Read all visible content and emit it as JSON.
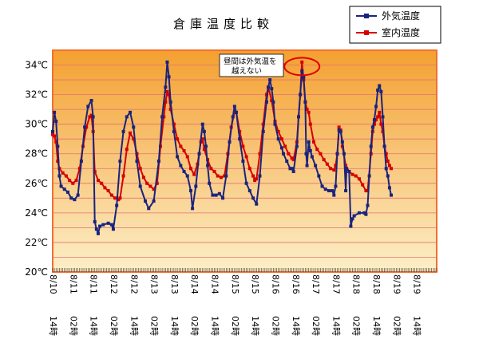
{
  "chart_data": {
    "type": "line",
    "title": "倉庫温度比較",
    "ylim": [
      20,
      35
    ],
    "yticks": [
      20,
      22,
      24,
      26,
      28,
      30,
      32,
      34
    ],
    "ytick_labels": [
      "20℃",
      "22℃",
      "24℃",
      "26℃",
      "28℃",
      "30℃",
      "32℃",
      "34℃"
    ],
    "xlim": [
      0,
      228
    ],
    "x_ticks": [
      {
        "h": 0,
        "date": "8/10",
        "time": "14時"
      },
      {
        "h": 12,
        "date": "8/11",
        "time": "02時"
      },
      {
        "h": 24,
        "date": "8/11",
        "time": "14時"
      },
      {
        "h": 36,
        "date": "8/12",
        "time": "02時"
      },
      {
        "h": 48,
        "date": "8/12",
        "time": "14時"
      },
      {
        "h": 60,
        "date": "8/13",
        "time": "02時"
      },
      {
        "h": 72,
        "date": "8/13",
        "time": "14時"
      },
      {
        "h": 84,
        "date": "8/14",
        "time": "02時"
      },
      {
        "h": 96,
        "date": "8/14",
        "time": "14時"
      },
      {
        "h": 108,
        "date": "8/15",
        "time": "02時"
      },
      {
        "h": 120,
        "date": "8/15",
        "time": "14時"
      },
      {
        "h": 132,
        "date": "8/16",
        "time": "02時"
      },
      {
        "h": 144,
        "date": "8/16",
        "time": "14時"
      },
      {
        "h": 156,
        "date": "8/17",
        "time": "02時"
      },
      {
        "h": 168,
        "date": "8/17",
        "time": "14時"
      },
      {
        "h": 180,
        "date": "8/18",
        "time": "02時"
      },
      {
        "h": 192,
        "date": "8/18",
        "time": "14時"
      },
      {
        "h": 204,
        "date": "8/19",
        "time": "02時"
      },
      {
        "h": 216,
        "date": "8/19",
        "time": "14時"
      }
    ],
    "grid": true,
    "legend_position": "top-right",
    "series": [
      {
        "name": "外気温度",
        "color": "#1a237e",
        "points": [
          [
            0,
            29.5
          ],
          [
            1,
            30.8
          ],
          [
            2,
            30.2
          ],
          [
            3,
            28.5
          ],
          [
            4,
            26.5
          ],
          [
            5,
            25.8
          ],
          [
            7,
            25.6
          ],
          [
            9,
            25.4
          ],
          [
            11,
            25.0
          ],
          [
            13,
            24.9
          ],
          [
            15,
            25.2
          ],
          [
            17,
            27.5
          ],
          [
            19,
            29.8
          ],
          [
            21,
            31.2
          ],
          [
            23,
            31.6
          ],
          [
            24,
            30.5
          ],
          [
            25,
            23.4
          ],
          [
            26,
            22.9
          ],
          [
            27,
            22.6
          ],
          [
            28,
            23.1
          ],
          [
            30,
            23.2
          ],
          [
            33,
            23.3
          ],
          [
            35,
            23.2
          ],
          [
            36,
            22.9
          ],
          [
            38,
            24.5
          ],
          [
            40,
            27.5
          ],
          [
            42,
            29.5
          ],
          [
            44,
            30.5
          ],
          [
            46,
            30.8
          ],
          [
            48,
            29.8
          ],
          [
            50,
            27.5
          ],
          [
            52,
            25.8
          ],
          [
            55,
            24.8
          ],
          [
            57,
            24.3
          ],
          [
            60,
            24.8
          ],
          [
            63,
            27.5
          ],
          [
            65,
            30.5
          ],
          [
            67,
            32.5
          ],
          [
            68,
            34.2
          ],
          [
            69,
            33.2
          ],
          [
            70,
            31.5
          ],
          [
            72,
            29.5
          ],
          [
            74,
            27.8
          ],
          [
            76,
            27.2
          ],
          [
            78,
            26.8
          ],
          [
            80,
            26.5
          ],
          [
            82,
            25.5
          ],
          [
            83,
            24.3
          ],
          [
            85,
            25.8
          ],
          [
            87,
            28.0
          ],
          [
            89,
            30.0
          ],
          [
            90,
            29.5
          ],
          [
            91,
            28.5
          ],
          [
            92,
            27.2
          ],
          [
            93,
            26.0
          ],
          [
            95,
            25.2
          ],
          [
            97,
            25.2
          ],
          [
            99,
            25.3
          ],
          [
            101,
            25.0
          ],
          [
            103,
            26.5
          ],
          [
            105,
            28.8
          ],
          [
            107,
            30.5
          ],
          [
            108,
            31.2
          ],
          [
            109,
            30.8
          ],
          [
            111,
            29.0
          ],
          [
            113,
            27.5
          ],
          [
            115,
            26.0
          ],
          [
            117,
            25.5
          ],
          [
            119,
            25.0
          ],
          [
            121,
            24.6
          ],
          [
            123,
            26.5
          ],
          [
            125,
            29.5
          ],
          [
            127,
            31.5
          ],
          [
            128,
            32.5
          ],
          [
            129,
            33.0
          ],
          [
            130,
            32.4
          ],
          [
            131,
            31.5
          ],
          [
            132,
            30.0
          ],
          [
            134,
            29.0
          ],
          [
            136,
            28.4
          ],
          [
            137,
            28.0
          ],
          [
            139,
            27.5
          ],
          [
            141,
            27.0
          ],
          [
            142,
            27.0
          ],
          [
            143,
            26.8
          ],
          [
            145,
            28.5
          ],
          [
            146,
            30.5
          ],
          [
            147,
            32.0
          ],
          [
            148,
            33.6
          ],
          [
            149,
            33.2
          ],
          [
            150,
            31.5
          ],
          [
            150.5,
            28.0
          ],
          [
            151,
            27.2
          ],
          [
            152,
            28.8
          ],
          [
            153,
            28.2
          ],
          [
            154,
            27.8
          ],
          [
            156,
            27.2
          ],
          [
            158,
            26.5
          ],
          [
            160,
            25.8
          ],
          [
            162,
            25.6
          ],
          [
            164,
            25.5
          ],
          [
            166,
            25.5
          ],
          [
            167,
            25.2
          ],
          [
            168,
            25.8
          ],
          [
            169,
            28.0
          ],
          [
            170,
            29.6
          ],
          [
            171,
            29.5
          ],
          [
            172,
            28.8
          ],
          [
            173,
            28.0
          ],
          [
            174,
            25.5
          ],
          [
            174.5,
            27.0
          ],
          [
            176,
            26.8
          ],
          [
            177,
            23.1
          ],
          [
            178,
            23.6
          ],
          [
            179,
            23.8
          ],
          [
            182,
            24.0
          ],
          [
            185,
            24.0
          ],
          [
            186,
            23.9
          ],
          [
            187,
            24.5
          ],
          [
            188,
            26.5
          ],
          [
            189,
            28.5
          ],
          [
            190,
            29.8
          ],
          [
            191,
            30.3
          ],
          [
            192,
            31.2
          ],
          [
            193,
            32.3
          ],
          [
            194,
            32.6
          ],
          [
            195,
            32.2
          ],
          [
            196,
            30.5
          ],
          [
            197,
            28.5
          ],
          [
            198,
            27.0
          ],
          [
            199,
            26.5
          ],
          [
            200,
            25.7
          ],
          [
            201,
            25.2
          ]
        ]
      },
      {
        "name": "室内温度",
        "color": "#d50000",
        "points": [
          [
            0,
            29.3
          ],
          [
            1,
            29.2
          ],
          [
            2,
            28.8
          ],
          [
            3,
            27.5
          ],
          [
            4,
            27.0
          ],
          [
            6,
            26.7
          ],
          [
            8,
            26.5
          ],
          [
            10,
            26.2
          ],
          [
            12,
            26.0
          ],
          [
            14,
            26.2
          ],
          [
            16,
            27.0
          ],
          [
            18,
            28.5
          ],
          [
            20,
            29.8
          ],
          [
            22,
            30.5
          ],
          [
            23,
            30.6
          ],
          [
            24,
            29.5
          ],
          [
            25,
            26.8
          ],
          [
            27,
            26.2
          ],
          [
            29,
            26.0
          ],
          [
            31,
            25.7
          ],
          [
            33,
            25.5
          ],
          [
            35,
            25.2
          ],
          [
            37,
            25.0
          ],
          [
            39,
            24.9
          ],
          [
            40,
            25.0
          ],
          [
            42,
            26.5
          ],
          [
            44,
            28.3
          ],
          [
            46,
            29.4
          ],
          [
            48,
            29.0
          ],
          [
            50,
            28.0
          ],
          [
            52,
            27.0
          ],
          [
            54,
            26.4
          ],
          [
            56,
            26.0
          ],
          [
            58,
            25.8
          ],
          [
            60,
            25.6
          ],
          [
            62,
            26.0
          ],
          [
            64,
            28.5
          ],
          [
            66,
            30.5
          ],
          [
            67,
            31.5
          ],
          [
            68,
            32.2
          ],
          [
            69,
            32.0
          ],
          [
            70,
            31.0
          ],
          [
            72,
            30.0
          ],
          [
            74,
            29.0
          ],
          [
            76,
            28.5
          ],
          [
            78,
            28.2
          ],
          [
            80,
            27.8
          ],
          [
            82,
            27.0
          ],
          [
            84,
            26.6
          ],
          [
            86,
            27.3
          ],
          [
            88,
            28.8
          ],
          [
            89,
            29.0
          ],
          [
            90,
            28.3
          ],
          [
            92,
            27.6
          ],
          [
            94,
            27.0
          ],
          [
            96,
            26.8
          ],
          [
            98,
            26.5
          ],
          [
            100,
            26.4
          ],
          [
            102,
            26.5
          ],
          [
            104,
            28.0
          ],
          [
            106,
            29.8
          ],
          [
            108,
            30.8
          ],
          [
            109,
            30.8
          ],
          [
            111,
            29.5
          ],
          [
            113,
            28.5
          ],
          [
            115,
            27.8
          ],
          [
            117,
            27.0
          ],
          [
            119,
            26.5
          ],
          [
            120,
            26.2
          ],
          [
            121,
            26.3
          ],
          [
            123,
            28.0
          ],
          [
            125,
            30.0
          ],
          [
            127,
            32.0
          ],
          [
            128,
            32.5
          ],
          [
            130,
            31.6
          ],
          [
            132,
            30.2
          ],
          [
            134,
            29.5
          ],
          [
            136,
            29.0
          ],
          [
            138,
            28.5
          ],
          [
            140,
            28.0
          ],
          [
            142,
            27.7
          ],
          [
            143,
            27.6
          ],
          [
            145,
            28.8
          ],
          [
            146,
            30.5
          ],
          [
            147,
            32.0
          ],
          [
            148,
            34.2
          ],
          [
            149,
            33.0
          ],
          [
            150,
            31.5
          ],
          [
            151,
            31.0
          ],
          [
            152,
            30.8
          ],
          [
            153,
            30.0
          ],
          [
            155,
            28.8
          ],
          [
            157,
            28.3
          ],
          [
            159,
            28.0
          ],
          [
            161,
            27.6
          ],
          [
            163,
            27.3
          ],
          [
            165,
            27.0
          ],
          [
            167,
            26.9
          ],
          [
            168,
            27.2
          ],
          [
            169,
            28.0
          ],
          [
            170,
            29.8
          ],
          [
            171,
            29.6
          ],
          [
            172,
            28.5
          ],
          [
            174,
            27.2
          ],
          [
            176,
            26.8
          ],
          [
            178,
            26.6
          ],
          [
            180,
            26.5
          ],
          [
            182,
            26.3
          ],
          [
            184,
            25.9
          ],
          [
            186,
            25.5
          ],
          [
            187,
            25.5
          ],
          [
            189,
            28.0
          ],
          [
            190,
            29.5
          ],
          [
            191,
            30.0
          ],
          [
            192,
            30.3
          ],
          [
            193,
            30.5
          ],
          [
            194,
            30.8
          ],
          [
            195,
            30.0
          ],
          [
            196,
            29.5
          ],
          [
            197,
            28.5
          ],
          [
            198,
            28.0
          ],
          [
            199,
            27.5
          ],
          [
            200,
            27.2
          ],
          [
            201,
            27.0
          ]
        ]
      }
    ],
    "annotation": {
      "lines": [
        "昼間は外気温を",
        "越えない"
      ],
      "target_x": 148,
      "target_y": 33.9
    }
  },
  "colors": {
    "plot_top": "#f4a030",
    "plot_bottom": "#fcefc8",
    "plot_border": "#f07030",
    "grid": "#e57070",
    "highlight": "#e00000"
  }
}
